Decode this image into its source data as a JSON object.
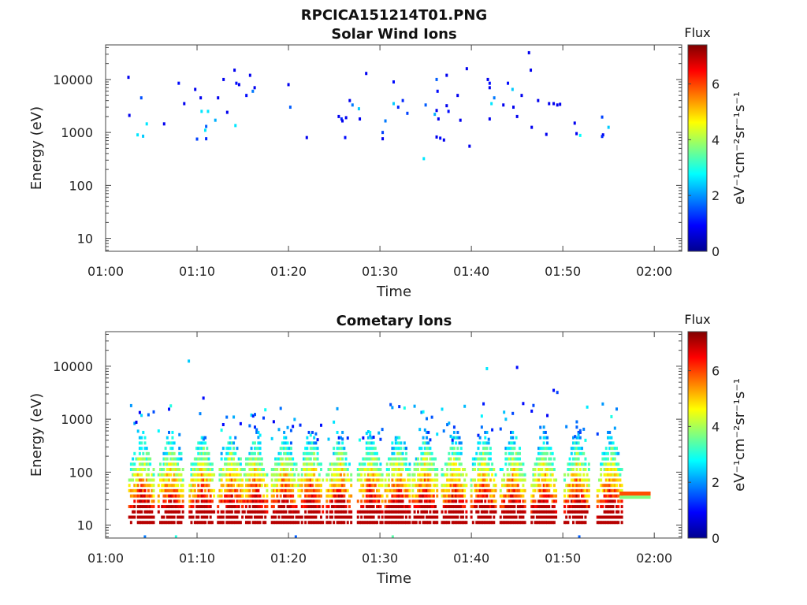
{
  "figure_title": "RPCICA151214T01.PNG",
  "chart_data": [
    {
      "type": "heatmap",
      "title": "Solar Wind Ions",
      "xlabel": "Time",
      "ylabel": "Energy (eV)",
      "x_ticks": [
        "01:00",
        "01:10",
        "01:20",
        "01:30",
        "01:40",
        "01:50",
        "02:00"
      ],
      "xlim_minutes": [
        0,
        63
      ],
      "y_scale": "log",
      "y_ticks": [
        {
          "value": 10,
          "label": "10"
        },
        {
          "value": 100,
          "label": "100"
        },
        {
          "value": 1000,
          "label": "1000"
        },
        {
          "value": 10000,
          "label": "10000"
        }
      ],
      "ylim": [
        5.7,
        45000
      ],
      "colorbar": {
        "title": "Flux",
        "label": "eV⁻¹cm⁻²sr⁻¹s⁻¹",
        "ticks": [
          {
            "value": 0,
            "label": "0"
          },
          {
            "value": 2,
            "label": "2"
          },
          {
            "value": 4,
            "label": "4"
          },
          {
            "value": 6,
            "label": "6"
          }
        ],
        "range": [
          0,
          7.4
        ],
        "colormap": "jet"
      },
      "points": [
        {
          "t": 2.5,
          "e": 11000,
          "f": 0.8
        },
        {
          "t": 2.6,
          "e": 2100,
          "f": 0.8
        },
        {
          "t": 3.5,
          "e": 900,
          "f": 2.6
        },
        {
          "t": 3.9,
          "e": 4500,
          "f": 1.5
        },
        {
          "t": 4.1,
          "e": 850,
          "f": 2.4
        },
        {
          "t": 4.5,
          "e": 1450,
          "f": 2.6
        },
        {
          "t": 6.4,
          "e": 1450,
          "f": 0.8
        },
        {
          "t": 8.0,
          "e": 8500,
          "f": 1.0
        },
        {
          "t": 8.6,
          "e": 3500,
          "f": 0.8
        },
        {
          "t": 9.8,
          "e": 6500,
          "f": 0.8
        },
        {
          "t": 10.0,
          "e": 750,
          "f": 1.4
        },
        {
          "t": 10.4,
          "e": 4500,
          "f": 0.8
        },
        {
          "t": 10.5,
          "e": 2500,
          "f": 2.6
        },
        {
          "t": 10.9,
          "e": 1100,
          "f": 2.6
        },
        {
          "t": 11.0,
          "e": 1300,
          "f": 1.6
        },
        {
          "t": 11.0,
          "e": 760,
          "f": 1.2
        },
        {
          "t": 11.2,
          "e": 2500,
          "f": 2.6
        },
        {
          "t": 12.0,
          "e": 1700,
          "f": 2.2
        },
        {
          "t": 12.3,
          "e": 4500,
          "f": 0.8
        },
        {
          "t": 12.9,
          "e": 10000,
          "f": 0.8
        },
        {
          "t": 13.3,
          "e": 2400,
          "f": 0.8
        },
        {
          "t": 14.1,
          "e": 15000,
          "f": 0.8
        },
        {
          "t": 14.3,
          "e": 8500,
          "f": 1.0
        },
        {
          "t": 14.6,
          "e": 8000,
          "f": 0.8
        },
        {
          "t": 14.2,
          "e": 1350,
          "f": 2.6
        },
        {
          "t": 15.4,
          "e": 5000,
          "f": 1.0
        },
        {
          "t": 15.8,
          "e": 12000,
          "f": 0.8
        },
        {
          "t": 16.1,
          "e": 6000,
          "f": 1.8
        },
        {
          "t": 16.3,
          "e": 7000,
          "f": 0.8
        },
        {
          "t": 20.0,
          "e": 8000,
          "f": 0.8
        },
        {
          "t": 20.2,
          "e": 3000,
          "f": 1.6
        },
        {
          "t": 22.0,
          "e": 800,
          "f": 0.8
        },
        {
          "t": 25.5,
          "e": 2000,
          "f": 0.8
        },
        {
          "t": 25.8,
          "e": 1800,
          "f": 1.2
        },
        {
          "t": 25.9,
          "e": 1650,
          "f": 0.8
        },
        {
          "t": 26.3,
          "e": 1900,
          "f": 0.8
        },
        {
          "t": 26.2,
          "e": 800,
          "f": 1.0
        },
        {
          "t": 26.7,
          "e": 4000,
          "f": 0.8
        },
        {
          "t": 27.0,
          "e": 3300,
          "f": 1.8
        },
        {
          "t": 27.7,
          "e": 2800,
          "f": 2.4
        },
        {
          "t": 27.8,
          "e": 1800,
          "f": 0.8
        },
        {
          "t": 28.5,
          "e": 13000,
          "f": 0.8
        },
        {
          "t": 30.3,
          "e": 1000,
          "f": 1.4
        },
        {
          "t": 30.3,
          "e": 760,
          "f": 0.8
        },
        {
          "t": 30.6,
          "e": 1650,
          "f": 1.8
        },
        {
          "t": 31.5,
          "e": 3500,
          "f": 2.4
        },
        {
          "t": 31.5,
          "e": 9000,
          "f": 1.0
        },
        {
          "t": 32.0,
          "e": 3000,
          "f": 1.2
        },
        {
          "t": 32.5,
          "e": 4000,
          "f": 1.2
        },
        {
          "t": 33.0,
          "e": 2300,
          "f": 1.4
        },
        {
          "t": 34.8,
          "e": 320,
          "f": 2.6
        },
        {
          "t": 35.0,
          "e": 3300,
          "f": 1.6
        },
        {
          "t": 36.2,
          "e": 10000,
          "f": 1.6
        },
        {
          "t": 36.3,
          "e": 6000,
          "f": 1.0
        },
        {
          "t": 36.2,
          "e": 2600,
          "f": 0.8
        },
        {
          "t": 36.0,
          "e": 2200,
          "f": 2.2
        },
        {
          "t": 36.4,
          "e": 1800,
          "f": 0.8
        },
        {
          "t": 36.2,
          "e": 820,
          "f": 0.8
        },
        {
          "t": 36.6,
          "e": 780,
          "f": 1.0
        },
        {
          "t": 37.0,
          "e": 720,
          "f": 0.8
        },
        {
          "t": 37.3,
          "e": 3200,
          "f": 0.8
        },
        {
          "t": 37.5,
          "e": 2500,
          "f": 1.0
        },
        {
          "t": 37.3,
          "e": 12000,
          "f": 0.8
        },
        {
          "t": 38.5,
          "e": 5000,
          "f": 0.8
        },
        {
          "t": 38.8,
          "e": 1700,
          "f": 0.8
        },
        {
          "t": 39.5,
          "e": 16000,
          "f": 0.8
        },
        {
          "t": 39.8,
          "e": 550,
          "f": 0.8
        },
        {
          "t": 41.8,
          "e": 10000,
          "f": 0.8
        },
        {
          "t": 42.0,
          "e": 8500,
          "f": 1.0
        },
        {
          "t": 42.0,
          "e": 7000,
          "f": 0.8
        },
        {
          "t": 42.2,
          "e": 3500,
          "f": 2.6
        },
        {
          "t": 42.0,
          "e": 1800,
          "f": 0.8
        },
        {
          "t": 42.5,
          "e": 4500,
          "f": 1.8
        },
        {
          "t": 43.5,
          "e": 3300,
          "f": 0.8
        },
        {
          "t": 44.0,
          "e": 8500,
          "f": 1.0
        },
        {
          "t": 44.6,
          "e": 3000,
          "f": 0.8
        },
        {
          "t": 44.5,
          "e": 6500,
          "f": 2.4
        },
        {
          "t": 45.0,
          "e": 2000,
          "f": 0.8
        },
        {
          "t": 45.5,
          "e": 5000,
          "f": 0.8
        },
        {
          "t": 46.3,
          "e": 32000,
          "f": 0.8
        },
        {
          "t": 46.5,
          "e": 15000,
          "f": 0.8
        },
        {
          "t": 46.6,
          "e": 1250,
          "f": 0.8
        },
        {
          "t": 47.3,
          "e": 4000,
          "f": 0.8
        },
        {
          "t": 48.2,
          "e": 920,
          "f": 0.8
        },
        {
          "t": 48.5,
          "e": 3500,
          "f": 0.8
        },
        {
          "t": 49.0,
          "e": 3500,
          "f": 0.8
        },
        {
          "t": 49.4,
          "e": 3300,
          "f": 0.8
        },
        {
          "t": 49.7,
          "e": 3400,
          "f": 0.8
        },
        {
          "t": 51.3,
          "e": 1500,
          "f": 0.8
        },
        {
          "t": 51.5,
          "e": 950,
          "f": 0.8
        },
        {
          "t": 51.9,
          "e": 880,
          "f": 2.8
        },
        {
          "t": 54.3,
          "e": 1950,
          "f": 1.4
        },
        {
          "t": 54.4,
          "e": 900,
          "f": 0.8
        },
        {
          "t": 54.3,
          "e": 840,
          "f": 1.2
        },
        {
          "t": 55.0,
          "e": 1250,
          "f": 2.4
        }
      ]
    },
    {
      "type": "heatmap",
      "title": "Cometary Ions",
      "xlabel": "Time",
      "ylabel": "Energy (eV)",
      "x_ticks": [
        "01:00",
        "01:10",
        "01:20",
        "01:30",
        "01:40",
        "01:50",
        "02:00"
      ],
      "xlim_minutes": [
        0,
        63
      ],
      "y_scale": "log",
      "y_ticks": [
        {
          "value": 10,
          "label": "10"
        },
        {
          "value": 100,
          "label": "100"
        },
        {
          "value": 1000,
          "label": "1000"
        },
        {
          "value": 10000,
          "label": "10000"
        }
      ],
      "ylim": [
        5.7,
        45000
      ],
      "colorbar": {
        "title": "Flux",
        "label": "eV⁻¹cm⁻²sr⁻¹s⁻¹",
        "ticks": [
          {
            "value": 0,
            "label": "0"
          },
          {
            "value": 2,
            "label": "2"
          },
          {
            "value": 4,
            "label": "4"
          },
          {
            "value": 6,
            "label": "6"
          }
        ],
        "range": [
          0,
          7.4
        ],
        "colormap": "jet"
      },
      "bursts_minutes": [
        4.0,
        7.2,
        10.6,
        13.7,
        16.4,
        19.6,
        22.5,
        25.6,
        29.0,
        32.0,
        35.0,
        38.2,
        41.4,
        44.6,
        48.0,
        51.6,
        55.2
      ],
      "steady_band": {
        "t_start": 56.2,
        "t_end": 59.6,
        "e_low": 36,
        "e_high": 43,
        "f": 5.9
      },
      "isolated_points": [
        {
          "t": 9.1,
          "e": 12500,
          "f": 2.4
        },
        {
          "t": 45.0,
          "e": 9500,
          "f": 1.0
        },
        {
          "t": 41.7,
          "e": 9000,
          "f": 2.6
        },
        {
          "t": 10.7,
          "e": 2500,
          "f": 1.0
        },
        {
          "t": 49.0,
          "e": 3500,
          "f": 1.0
        },
        {
          "t": 49.4,
          "e": 3200,
          "f": 1.4
        },
        {
          "t": 4.3,
          "e": 6,
          "f": 1.8
        },
        {
          "t": 7.7,
          "e": 6,
          "f": 3.0
        },
        {
          "t": 20.8,
          "e": 6,
          "f": 1.6
        },
        {
          "t": 31.4,
          "e": 6,
          "f": 3.4
        },
        {
          "t": 51.8,
          "e": 6,
          "f": 1.6
        }
      ]
    }
  ]
}
